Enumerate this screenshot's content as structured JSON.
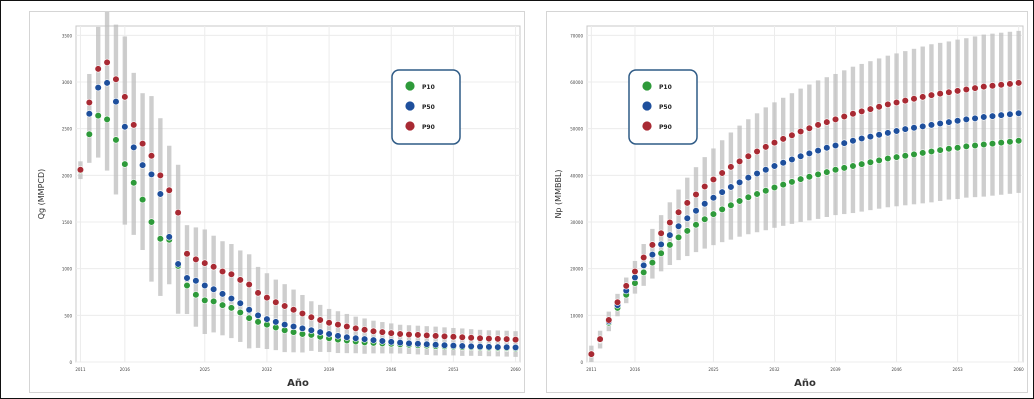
{
  "colors": {
    "p10": "#2e9a3a",
    "p50": "#1e4f9c",
    "p90": "#a82a33",
    "band": "#bdbdbd"
  },
  "chart_data": [
    {
      "type": "scatter",
      "title": "",
      "xlabel": "Año",
      "ylabel": "Qg (MMPCD)",
      "x": [
        2011,
        2012,
        2013,
        2014,
        2015,
        2016,
        2017,
        2018,
        2019,
        2020,
        2021,
        2022,
        2023,
        2024,
        2025,
        2026,
        2027,
        2028,
        2029,
        2030,
        2031,
        2032,
        2033,
        2034,
        2035,
        2036,
        2037,
        2038,
        2039,
        2040,
        2041,
        2042,
        2043,
        2044,
        2045,
        2046,
        2047,
        2048,
        2049,
        2050,
        2051,
        2052,
        2053,
        2054,
        2055,
        2056,
        2057,
        2058,
        2059,
        2060
      ],
      "xticks": [
        {
          "value": 2011,
          "label": "2011"
        },
        {
          "value": 2016,
          "label": "2016"
        },
        {
          "value": 2025,
          "label": "2025"
        },
        {
          "value": 2032,
          "label": "2032"
        },
        {
          "value": 2039,
          "label": "2039"
        },
        {
          "value": 2046,
          "label": "2046"
        },
        {
          "value": 2053,
          "label": "2053"
        },
        {
          "value": 2060,
          "label": "2060"
        }
      ],
      "yticks": [
        0,
        500,
        1000,
        1500,
        2000,
        2500,
        3000,
        3500
      ],
      "xlim": [
        2010.5,
        2060.5
      ],
      "ylim": [
        0,
        3600
      ],
      "legend": [
        "P10",
        "P50",
        "P90"
      ],
      "legend_position": "top-right",
      "series": [
        {
          "name": "P10",
          "values": [
            2050,
            2440,
            2640,
            2600,
            2380,
            2120,
            1920,
            1740,
            1500,
            1320,
            1310,
            1030,
            820,
            720,
            660,
            650,
            610,
            580,
            530,
            470,
            430,
            400,
            370,
            340,
            320,
            300,
            290,
            270,
            255,
            240,
            230,
            220,
            210,
            205,
            200,
            195,
            190,
            185,
            180,
            175,
            170,
            168,
            165,
            160,
            158,
            155,
            152,
            150,
            148,
            145
          ]
        },
        {
          "name": "P50",
          "values": [
            2060,
            2660,
            2940,
            2990,
            2790,
            2520,
            2300,
            2110,
            2010,
            1800,
            1340,
            1050,
            900,
            870,
            820,
            780,
            730,
            680,
            630,
            560,
            500,
            460,
            430,
            400,
            380,
            360,
            340,
            320,
            300,
            280,
            265,
            255,
            245,
            235,
            225,
            215,
            208,
            200,
            195,
            190,
            185,
            180,
            176,
            172,
            168,
            165,
            162,
            160,
            158,
            155
          ]
        },
        {
          "name": "P90",
          "values": [
            2060,
            2780,
            3140,
            3210,
            3030,
            2840,
            2540,
            2340,
            2210,
            2000,
            1840,
            1600,
            1160,
            1100,
            1060,
            1020,
            970,
            940,
            880,
            830,
            740,
            690,
            640,
            600,
            560,
            520,
            480,
            450,
            420,
            400,
            380,
            360,
            345,
            330,
            320,
            310,
            300,
            295,
            290,
            285,
            280,
            275,
            270,
            265,
            260,
            255,
            250,
            248,
            245,
            240
          ]
        }
      ]
    },
    {
      "type": "scatter",
      "title": "",
      "xlabel": "Año",
      "ylabel": "Np (MMBBL)",
      "x": [
        2011,
        2012,
        2013,
        2014,
        2015,
        2016,
        2017,
        2018,
        2019,
        2020,
        2021,
        2022,
        2023,
        2024,
        2025,
        2026,
        2027,
        2028,
        2029,
        2030,
        2031,
        2032,
        2033,
        2034,
        2035,
        2036,
        2037,
        2038,
        2039,
        2040,
        2041,
        2042,
        2043,
        2044,
        2045,
        2046,
        2047,
        2048,
        2049,
        2050,
        2051,
        2052,
        2053,
        2054,
        2055,
        2056,
        2057,
        2058,
        2059,
        2060
      ],
      "xticks": [
        {
          "value": 2011,
          "label": "2011"
        },
        {
          "value": 2016,
          "label": "2016"
        },
        {
          "value": 2025,
          "label": "2025"
        },
        {
          "value": 2032,
          "label": "2032"
        },
        {
          "value": 2039,
          "label": "2039"
        },
        {
          "value": 2046,
          "label": "2046"
        },
        {
          "value": 2053,
          "label": "2053"
        },
        {
          "value": 2060,
          "label": "2060"
        }
      ],
      "yticks": [
        0,
        10000,
        20000,
        30000,
        40000,
        50000,
        60000,
        70000
      ],
      "xlim": [
        2010.5,
        2060.5
      ],
      "ylim": [
        0,
        72000
      ],
      "legend": [
        "P10",
        "P50",
        "P90"
      ],
      "legend_position": "top-left",
      "series": [
        {
          "name": "P10",
          "values": [
            1700,
            4700,
            8400,
            11600,
            14400,
            16900,
            19200,
            21300,
            23300,
            25100,
            26700,
            28100,
            29400,
            30600,
            31700,
            32700,
            33600,
            34500,
            35300,
            36000,
            36700,
            37400,
            38000,
            38600,
            39200,
            39700,
            40200,
            40700,
            41200,
            41600,
            42000,
            42400,
            42800,
            43200,
            43600,
            43900,
            44200,
            44500,
            44800,
            45100,
            45400,
            45700,
            45900,
            46200,
            46400,
            46600,
            46800,
            47000,
            47200,
            47400
          ]
        },
        {
          "name": "P50",
          "values": [
            1700,
            4800,
            8700,
            12200,
            15300,
            18100,
            20700,
            23000,
            25200,
            27200,
            29100,
            30800,
            32400,
            33900,
            35200,
            36400,
            37500,
            38500,
            39500,
            40400,
            41200,
            42000,
            42700,
            43400,
            44100,
            44700,
            45300,
            45900,
            46400,
            46900,
            47400,
            47900,
            48300,
            48700,
            49100,
            49500,
            49900,
            50200,
            50500,
            50800,
            51100,
            51400,
            51700,
            52000,
            52200,
            52500,
            52700,
            52900,
            53100,
            53300
          ]
        },
        {
          "name": "P90",
          "values": [
            1700,
            4900,
            9000,
            12800,
            16300,
            19400,
            22400,
            25100,
            27600,
            29900,
            32100,
            34100,
            35900,
            37600,
            39100,
            40500,
            41800,
            43000,
            44100,
            45100,
            46100,
            47000,
            47800,
            48600,
            49400,
            50100,
            50800,
            51400,
            52000,
            52600,
            53200,
            53700,
            54200,
            54700,
            55200,
            55600,
            56000,
            56400,
            56800,
            57200,
            57500,
            57800,
            58100,
            58400,
            58700,
            59000,
            59200,
            59400,
            59600,
            59800
          ]
        }
      ]
    }
  ]
}
